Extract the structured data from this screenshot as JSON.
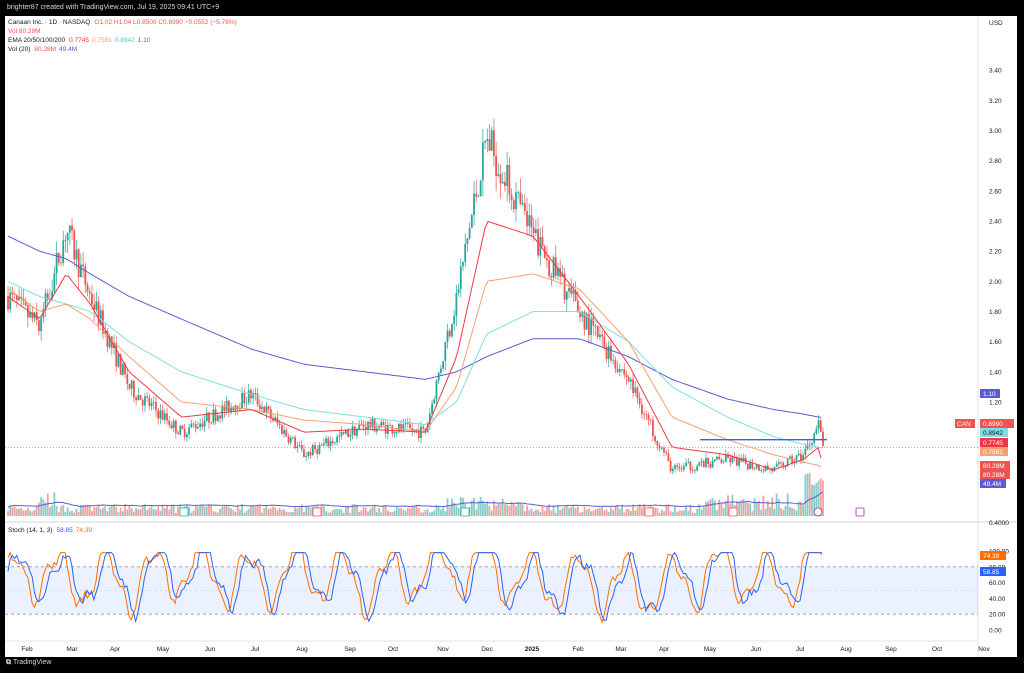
{
  "header": {
    "credit": "brighter87 created with TradingView.com, Jul 19, 2025 09:41 UTC+9"
  },
  "footer": {
    "brand": "TradingView"
  },
  "legend": {
    "symbol": "Canaan Inc. · 1D · NASDAQ",
    "ohlc": "O1.02  H1.04  L0.8500  C0.8990  −0.0552 (−5.78%)",
    "vol": "Vol  80.28M",
    "ema_label": "EMA 20/50/100/200",
    "ema_vals": [
      "0.7745",
      "0.7581",
      "0.8942",
      "1.10"
    ],
    "vol20_label": "Vol (20)",
    "vol20_vals": [
      "80.28M",
      "49.4M"
    ],
    "stoch_label": "Stoch (14, 1, 3)",
    "stoch_vals": [
      "58.85",
      "74.39"
    ]
  },
  "colors": {
    "up": "#26a69a",
    "down": "#ef5350",
    "ema20": "#f23645",
    "ema50": "#f7a072",
    "ema100": "#7fdde3",
    "ema200": "#5b5bd6",
    "stoch_k": "#2962ff",
    "stoch_d": "#ff6d00",
    "hline": "#2962ff"
  },
  "axis": {
    "currency": "USD",
    "price_ticks": [
      "3.40",
      "3.20",
      "3.00",
      "2.80",
      "2.60",
      "2.40",
      "2.20",
      "2.00",
      "1.80",
      "1.60",
      "1.40",
      "1.20",
      "1.00",
      "0.4000"
    ],
    "price_tick_values": [
      3.4,
      3.2,
      3.0,
      2.8,
      2.6,
      2.4,
      2.2,
      2.0,
      1.8,
      1.6,
      1.4,
      1.2,
      1.0,
      0.4
    ],
    "stoch_ticks": [
      "100.00",
      "80.00",
      "60.00",
      "40.00",
      "20.00",
      "0.00"
    ],
    "stoch_tick_values": [
      100,
      80,
      60,
      40,
      20,
      0
    ],
    "month_labels": [
      "Feb",
      "Mar",
      "Apr",
      "May",
      "Jun",
      "Jul",
      "Aug",
      "Sep",
      "Oct",
      "Nov",
      "Dec",
      "2025",
      "Feb",
      "Mar",
      "Apr",
      "May",
      "Jun",
      "Jul",
      "Aug",
      "Sep",
      "Oct",
      "Nov"
    ],
    "month_positions": [
      22,
      67,
      110,
      158,
      205,
      250,
      297,
      345,
      388,
      438,
      482,
      527,
      573,
      616,
      659,
      705,
      751,
      795,
      841,
      886,
      932,
      979
    ]
  },
  "badges": {
    "can": {
      "label": "CAN",
      "value": "0.8990"
    },
    "ema200": "1.10",
    "ema100": "0.8942",
    "ema20": "0.7745",
    "ema50": "0.7581",
    "vol": "80.28M",
    "vol_ma": "80.28M",
    "vol20": "49.4M",
    "stoch_d": "74.39",
    "stoch_k": "58.85"
  },
  "chart_data": {
    "type": "line",
    "title": "Canaan Inc. · 1D · NASDAQ",
    "y_unit": "USD",
    "x": [
      "2024-01-20",
      "2024-02-10",
      "2024-02-28",
      "2024-03-15",
      "2024-04-10",
      "2024-05-15",
      "2024-07-01",
      "2024-08-05",
      "2024-09-15",
      "2024-10-25",
      "2024-11-15",
      "2024-12-05",
      "2025-01-05",
      "2025-02-05",
      "2025-03-10",
      "2025-04-08",
      "2025-05-15",
      "2025-06-15",
      "2025-07-05",
      "2025-07-15",
      "2025-07-18"
    ],
    "series": [
      {
        "name": "Canaan Inc.",
        "values": [
          1.9,
          1.7,
          2.35,
          1.9,
          1.3,
          1.0,
          1.25,
          0.85,
          1.05,
          1.0,
          1.9,
          2.95,
          2.3,
          1.8,
          1.35,
          0.75,
          0.82,
          0.75,
          0.85,
          1.05,
          0.899
        ]
      },
      {
        "name": "EMA 20",
        "values": [
          1.9,
          1.75,
          2.05,
          1.85,
          1.4,
          1.1,
          1.15,
          1.0,
          1.02,
          1.0,
          1.5,
          2.4,
          2.3,
          1.9,
          1.45,
          0.9,
          0.85,
          0.75,
          0.82,
          0.9,
          0.7745
        ]
      },
      {
        "name": "EMA 50",
        "values": [
          1.95,
          1.8,
          1.85,
          1.75,
          1.5,
          1.2,
          1.15,
          1.08,
          1.05,
          1.0,
          1.3,
          2.0,
          2.05,
          1.95,
          1.6,
          1.1,
          0.95,
          0.85,
          0.8,
          0.78,
          0.7581
        ]
      },
      {
        "name": "EMA 100",
        "values": [
          2.0,
          1.9,
          1.85,
          1.8,
          1.6,
          1.4,
          1.25,
          1.15,
          1.1,
          1.05,
          1.2,
          1.65,
          1.8,
          1.8,
          1.6,
          1.3,
          1.1,
          0.97,
          0.92,
          0.9,
          0.8942
        ]
      },
      {
        "name": "EMA 200",
        "values": [
          2.3,
          2.2,
          2.15,
          2.05,
          1.9,
          1.75,
          1.55,
          1.45,
          1.4,
          1.35,
          1.4,
          1.5,
          1.62,
          1.62,
          1.5,
          1.35,
          1.22,
          1.15,
          1.12,
          1.1,
          1.1
        ]
      }
    ],
    "ylim": [
      0.3,
      3.5
    ],
    "resistance_level": 0.95,
    "stoch": {
      "k": [
        20,
        85,
        15,
        60,
        20,
        85,
        25,
        80,
        15,
        75,
        90,
        80,
        20,
        30,
        10,
        15,
        85,
        20,
        80,
        95,
        58.85
      ],
      "d": [
        25,
        80,
        20,
        55,
        25,
        80,
        30,
        75,
        20,
        70,
        85,
        82,
        25,
        28,
        15,
        18,
        80,
        25,
        75,
        88,
        74.39
      ],
      "bands": [
        80,
        20
      ]
    }
  }
}
